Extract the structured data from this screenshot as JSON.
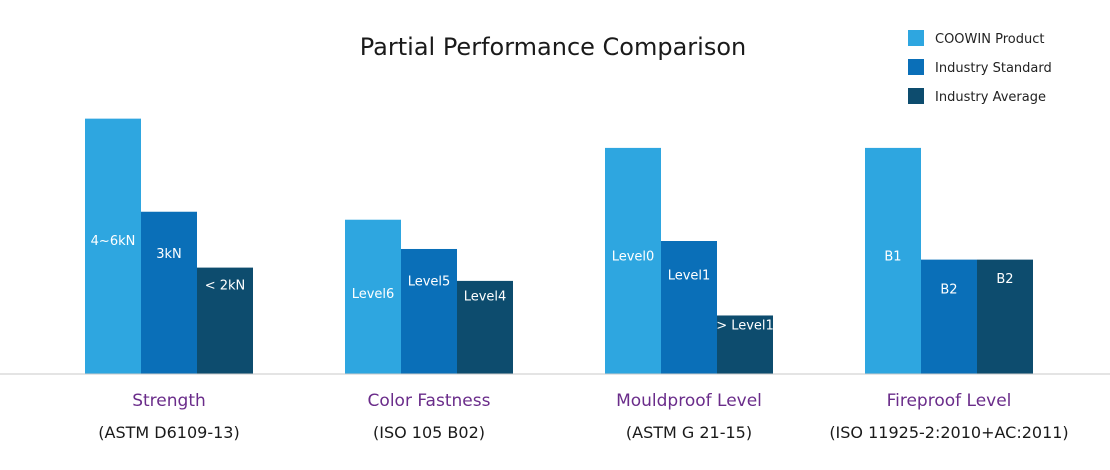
{
  "chart_data": {
    "type": "bar",
    "title": "Partial Performance Comparison",
    "xlabel": "",
    "ylabel": "",
    "grid": false,
    "legend_position": "top-right",
    "categories": [
      {
        "name": "Strength",
        "standard": "(ASTM D6109-13)"
      },
      {
        "name": "Color Fastness",
        "standard": "(ISO 105 B02)"
      },
      {
        "name": "Mouldproof Level",
        "standard": "(ASTM G 21-15)"
      },
      {
        "name": "Fireproof Level",
        "standard": "(ISO 11925-2:2010+AC:2011)"
      }
    ],
    "series": [
      {
        "name": "COOWIN Product",
        "color": "#2ea6e0",
        "labels": [
          "4~6kN",
          "Level6",
          "Level0",
          "B1"
        ],
        "values": [
          0.96,
          0.58,
          0.85,
          0.85
        ]
      },
      {
        "name": "Industry Standard",
        "color": "#0a6fb8",
        "labels": [
          "3kN",
          "Level5",
          "Level1",
          "B2"
        ],
        "values": [
          0.61,
          0.47,
          0.5,
          0.43
        ]
      },
      {
        "name": "Industry Average",
        "color": "#0d4c6e",
        "labels": [
          "< 2kN",
          "Level4",
          "> Level1",
          "B2"
        ],
        "values": [
          0.4,
          0.35,
          0.22,
          0.43
        ]
      }
    ],
    "baseline_color": "#c8c8c8"
  }
}
